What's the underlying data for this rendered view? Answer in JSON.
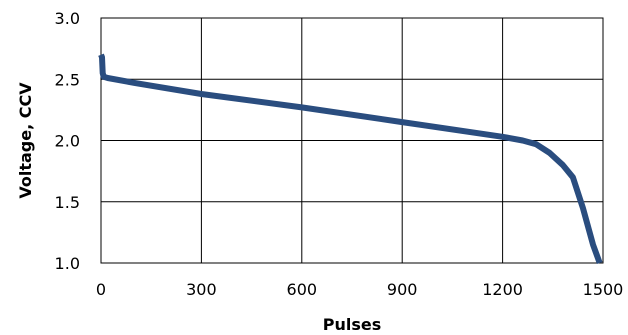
{
  "chart_data": {
    "type": "line",
    "title": "",
    "xlabel": "Pulses",
    "ylabel": "Voltage, CCV",
    "xlim": [
      0,
      1500
    ],
    "ylim": [
      1.0,
      3.0
    ],
    "x_ticks": [
      "0",
      "300",
      "600",
      "900",
      "1200",
      "1500"
    ],
    "y_ticks": [
      "1.0",
      "1.5",
      "2.0",
      "2.5",
      "3.0"
    ],
    "grid": true,
    "legend": "none",
    "series": [
      {
        "color": "#2a4d7f",
        "points": [
          [
            0,
            2.7
          ],
          [
            3,
            2.68
          ],
          [
            5,
            2.55
          ],
          [
            8,
            2.52
          ],
          [
            20,
            2.51
          ],
          [
            100,
            2.47
          ],
          [
            300,
            2.38
          ],
          [
            600,
            2.27
          ],
          [
            900,
            2.15
          ],
          [
            1200,
            2.03
          ],
          [
            1260,
            2.0
          ],
          [
            1300,
            1.97
          ],
          [
            1340,
            1.9
          ],
          [
            1380,
            1.8
          ],
          [
            1410,
            1.7
          ],
          [
            1440,
            1.45
          ],
          [
            1470,
            1.15
          ],
          [
            1490,
            1.0
          ]
        ]
      }
    ]
  }
}
